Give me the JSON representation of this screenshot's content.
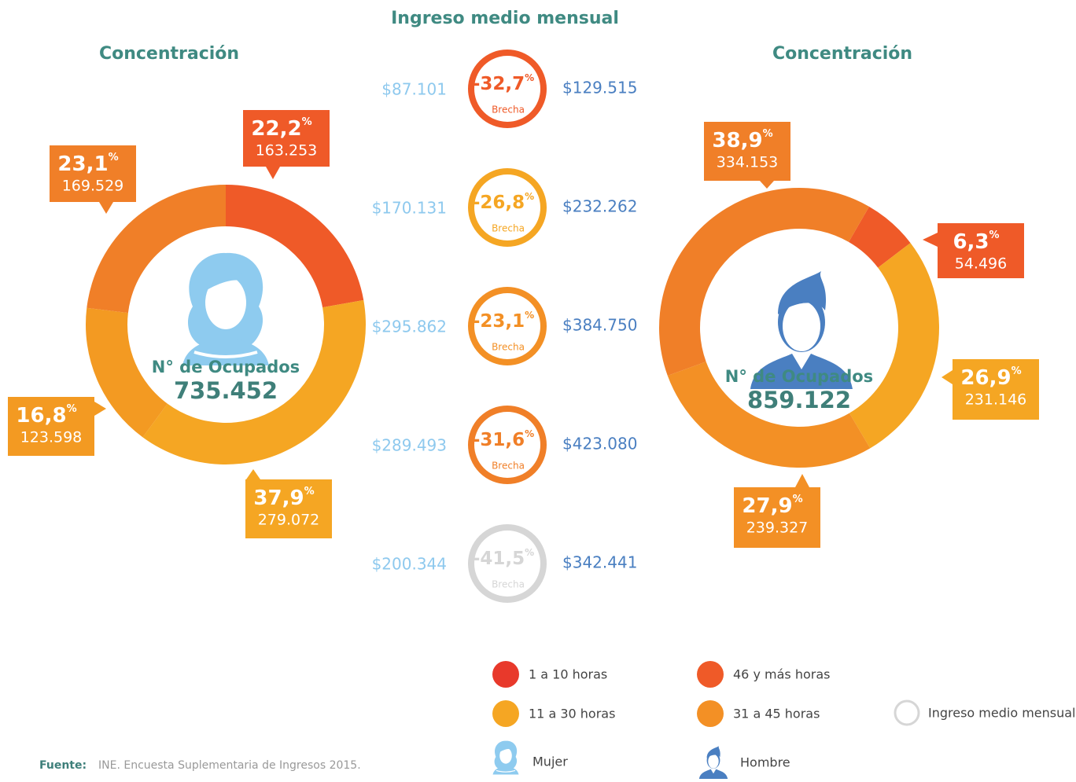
{
  "chart_data": [
    {
      "type": "donut",
      "title": "Concentración",
      "center_label": "N° de Ocupados",
      "center_value": "735.452",
      "icon": "Mujer",
      "unit": "%",
      "values": [
        22.2,
        37.9,
        16.8,
        23.1
      ],
      "value_labels": [
        "22,2",
        "37,9",
        "16,8",
        "23,1"
      ],
      "count_labels": [
        "163.253",
        "279.072",
        "123.598",
        "169.529"
      ],
      "colors": [
        "#ef5a28",
        "#f5a623",
        "#f39a22",
        "#f07f28"
      ]
    },
    {
      "type": "donut",
      "title": "Concentración",
      "center_label": "N° de Ocupados",
      "center_value": "859.122",
      "icon": "Hombre",
      "unit": "%",
      "values": [
        6.3,
        26.9,
        27.9,
        38.9
      ],
      "value_labels": [
        "6,3",
        "26,9",
        "27,9",
        "38,9"
      ],
      "count_labels": [
        "54.496",
        "231.146",
        "239.327",
        "334.153"
      ],
      "colors": [
        "#ef5a28",
        "#f5a623",
        "#f39025",
        "#f07f28"
      ]
    }
  ],
  "income": {
    "title": "Ingreso medio mensual",
    "caption": "Brecha",
    "unit": "%",
    "rows": [
      {
        "women": "$87.101",
        "men": "$129.515",
        "gap": "-32,7",
        "color": "#ef5a28"
      },
      {
        "women": "$170.131",
        "men": "$232.262",
        "gap": "-26,8",
        "color": "#f5a623"
      },
      {
        "women": "$295.862",
        "men": "$384.750",
        "gap": "-23,1",
        "color": "#f39025"
      },
      {
        "women": "$289.493",
        "men": "$423.080",
        "gap": "-31,6",
        "color": "#f07f28"
      },
      {
        "women": "$200.344",
        "men": "$342.441",
        "gap": "-41,5",
        "color": "#d6d6d6"
      }
    ]
  },
  "legend": {
    "items": [
      {
        "label": "1 a 10 horas",
        "color": "#e8392b"
      },
      {
        "label": "46 y más horas",
        "color": "#ef5a28"
      },
      {
        "label": "11 a 30 horas",
        "color": "#f5a623"
      },
      {
        "label": "31 a 45 horas",
        "color": "#f39025"
      },
      {
        "label": "Ingreso medio mensual",
        "color": "#d6d6d6"
      }
    ],
    "women": "Mujer",
    "men": "Hombre"
  },
  "source": {
    "label": "Fuente:",
    "text": "INE. Encuesta Suplementaria de Ingresos 2015."
  }
}
